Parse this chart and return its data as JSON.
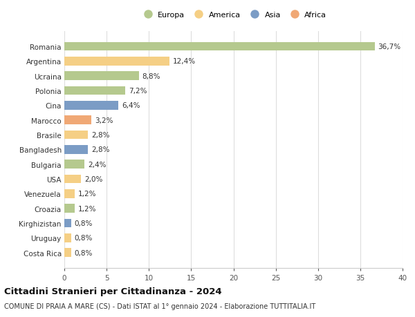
{
  "countries": [
    "Romania",
    "Argentina",
    "Ucraina",
    "Polonia",
    "Cina",
    "Marocco",
    "Brasile",
    "Bangladesh",
    "Bulgaria",
    "USA",
    "Venezuela",
    "Croazia",
    "Kirghizistan",
    "Uruguay",
    "Costa Rica"
  ],
  "values": [
    36.7,
    12.4,
    8.8,
    7.2,
    6.4,
    3.2,
    2.8,
    2.8,
    2.4,
    2.0,
    1.2,
    1.2,
    0.8,
    0.8,
    0.8
  ],
  "labels": [
    "36,7%",
    "12,4%",
    "8,8%",
    "7,2%",
    "6,4%",
    "3,2%",
    "2,8%",
    "2,8%",
    "2,4%",
    "2,0%",
    "1,2%",
    "1,2%",
    "0,8%",
    "0,8%",
    "0,8%"
  ],
  "continents": [
    "Europa",
    "America",
    "Europa",
    "Europa",
    "Asia",
    "Africa",
    "America",
    "Asia",
    "Europa",
    "America",
    "America",
    "Europa",
    "Asia",
    "America",
    "America"
  ],
  "continent_colors": {
    "Europa": "#b5c98e",
    "America": "#f5cf85",
    "Asia": "#7b9cc5",
    "Africa": "#f0a875"
  },
  "legend_order": [
    "Europa",
    "America",
    "Asia",
    "Africa"
  ],
  "xlim": [
    0,
    40
  ],
  "xticks": [
    0,
    5,
    10,
    15,
    20,
    25,
    30,
    35,
    40
  ],
  "title": "Cittadini Stranieri per Cittadinanza - 2024",
  "subtitle": "COMUNE DI PRAIA A MARE (CS) - Dati ISTAT al 1° gennaio 2024 - Elaborazione TUTTITALIA.IT",
  "bg_color": "#ffffff",
  "bar_height": 0.6,
  "label_fontsize": 7.5,
  "title_fontsize": 9.5,
  "subtitle_fontsize": 7.0
}
